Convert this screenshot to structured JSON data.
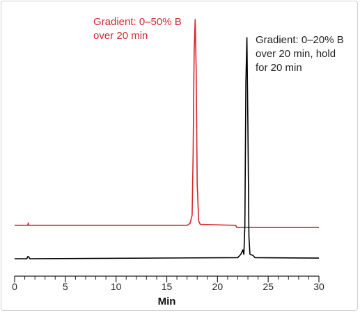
{
  "chart_data": {
    "type": "line",
    "xlabel": "Min",
    "xlim": [
      0,
      30
    ],
    "x_ticks": [
      "0",
      "5",
      "10",
      "15",
      "20",
      "25",
      "30"
    ],
    "series": [
      {
        "color": "#d7262b",
        "points": [
          [
            0,
            0
          ],
          [
            1.3,
            0
          ],
          [
            1.35,
            0.012
          ],
          [
            1.4,
            0
          ],
          [
            17.0,
            0
          ],
          [
            17.3,
            0.01
          ],
          [
            17.5,
            0.05
          ],
          [
            17.6,
            0.35
          ],
          [
            17.7,
            0.85
          ],
          [
            17.8,
            1.0
          ],
          [
            17.9,
            0.75
          ],
          [
            18.0,
            0.2
          ],
          [
            18.15,
            0.02
          ],
          [
            18.3,
            0.005
          ],
          [
            21.8,
            0.0
          ],
          [
            21.9,
            -0.01
          ],
          [
            30,
            -0.01
          ]
        ]
      },
      {
        "color": "#000000",
        "points": [
          [
            0,
            0
          ],
          [
            1.2,
            0
          ],
          [
            1.3,
            0.01
          ],
          [
            1.4,
            0.008
          ],
          [
            1.5,
            0
          ],
          [
            22.0,
            0.005
          ],
          [
            22.3,
            0.02
          ],
          [
            22.5,
            0.04
          ],
          [
            22.6,
            0.02
          ],
          [
            22.7,
            0.15
          ],
          [
            22.8,
            0.8
          ],
          [
            22.9,
            1.0
          ],
          [
            23.0,
            0.6
          ],
          [
            23.1,
            0.1
          ],
          [
            23.2,
            0.02
          ],
          [
            23.5,
            0.015
          ],
          [
            23.7,
            0.005
          ],
          [
            30,
            0.003
          ]
        ]
      }
    ],
    "annotations": [
      {
        "series": 0,
        "color": "#d7262b",
        "lines": [
          "Gradient:  0–50% B",
          "over 20 min"
        ]
      },
      {
        "series": 1,
        "color": "#222222",
        "lines": [
          "Gradient:  0–20% B",
          "over 20 min, hold",
          "for 20 min"
        ]
      }
    ]
  }
}
